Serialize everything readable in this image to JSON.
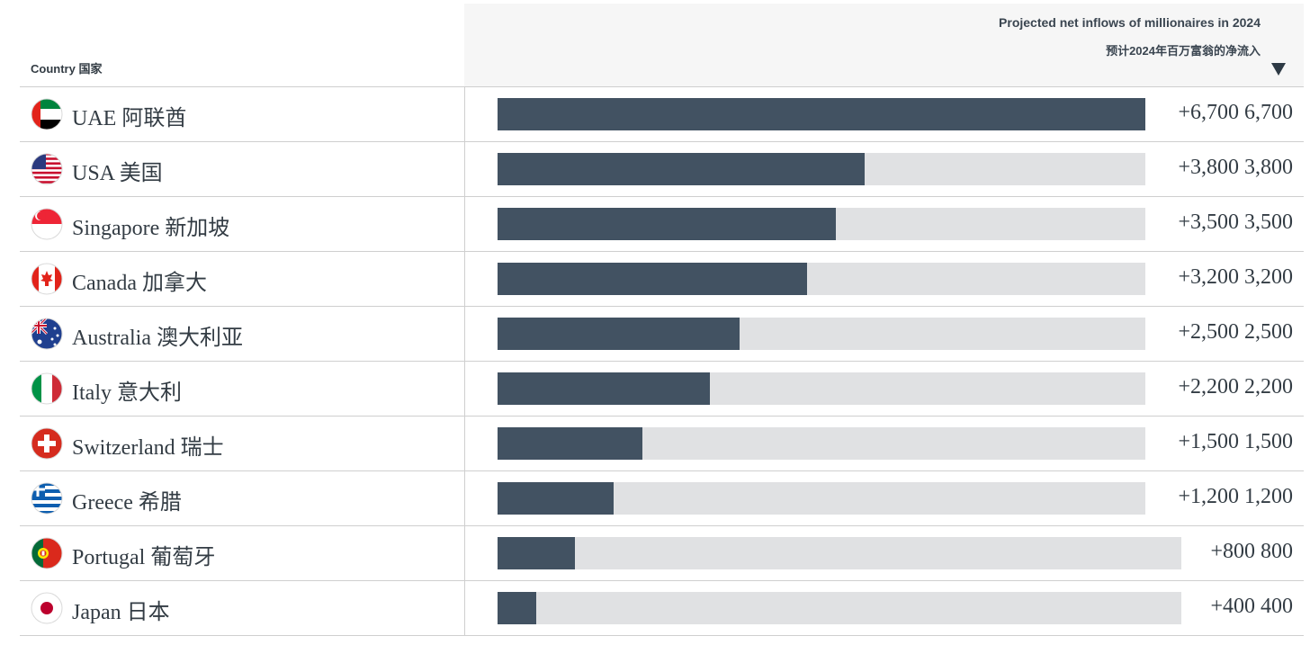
{
  "header": {
    "country_label": "Country 国家",
    "value_title": "Projected net inflows of millionaires in 2024",
    "value_subtitle": "预计2024年百万富翁的净流入"
  },
  "chart_data": {
    "type": "bar",
    "orientation": "horizontal",
    "title": "Projected net inflows of millionaires in 2024",
    "subtitle": "预计2024年百万富翁的净流入",
    "xlim": [
      0,
      6700
    ],
    "categories": [
      "UAE 阿联酋",
      "USA 美国",
      "Singapore 新加坡",
      "Canada 加拿大",
      "Australia 澳大利亚",
      "Italy 意大利",
      "Switzerland 瑞士",
      "Greece 希腊",
      "Portugal 葡萄牙",
      "Japan 日本"
    ],
    "values": [
      6700,
      3800,
      3500,
      3200,
      2500,
      2200,
      1500,
      1200,
      800,
      400
    ],
    "value_labels": [
      "+6,700 6,700",
      "+3,800 3,800",
      "+3,500 3,500",
      "+3,200 3,200",
      "+2,500 2,500",
      "+2,200 2,200",
      "+1,500 1,500",
      "+1,200 1,200",
      "+800 800",
      "+400 400"
    ],
    "flags": [
      "uae-flag-icon",
      "usa-flag-icon",
      "singapore-flag-icon",
      "canada-flag-icon",
      "australia-flag-icon",
      "italy-flag-icon",
      "switzerland-flag-icon",
      "greece-flag-icon",
      "portugal-flag-icon",
      "japan-flag-icon"
    ],
    "colors": {
      "bar": "#425262",
      "track": "#e0e1e3"
    }
  }
}
